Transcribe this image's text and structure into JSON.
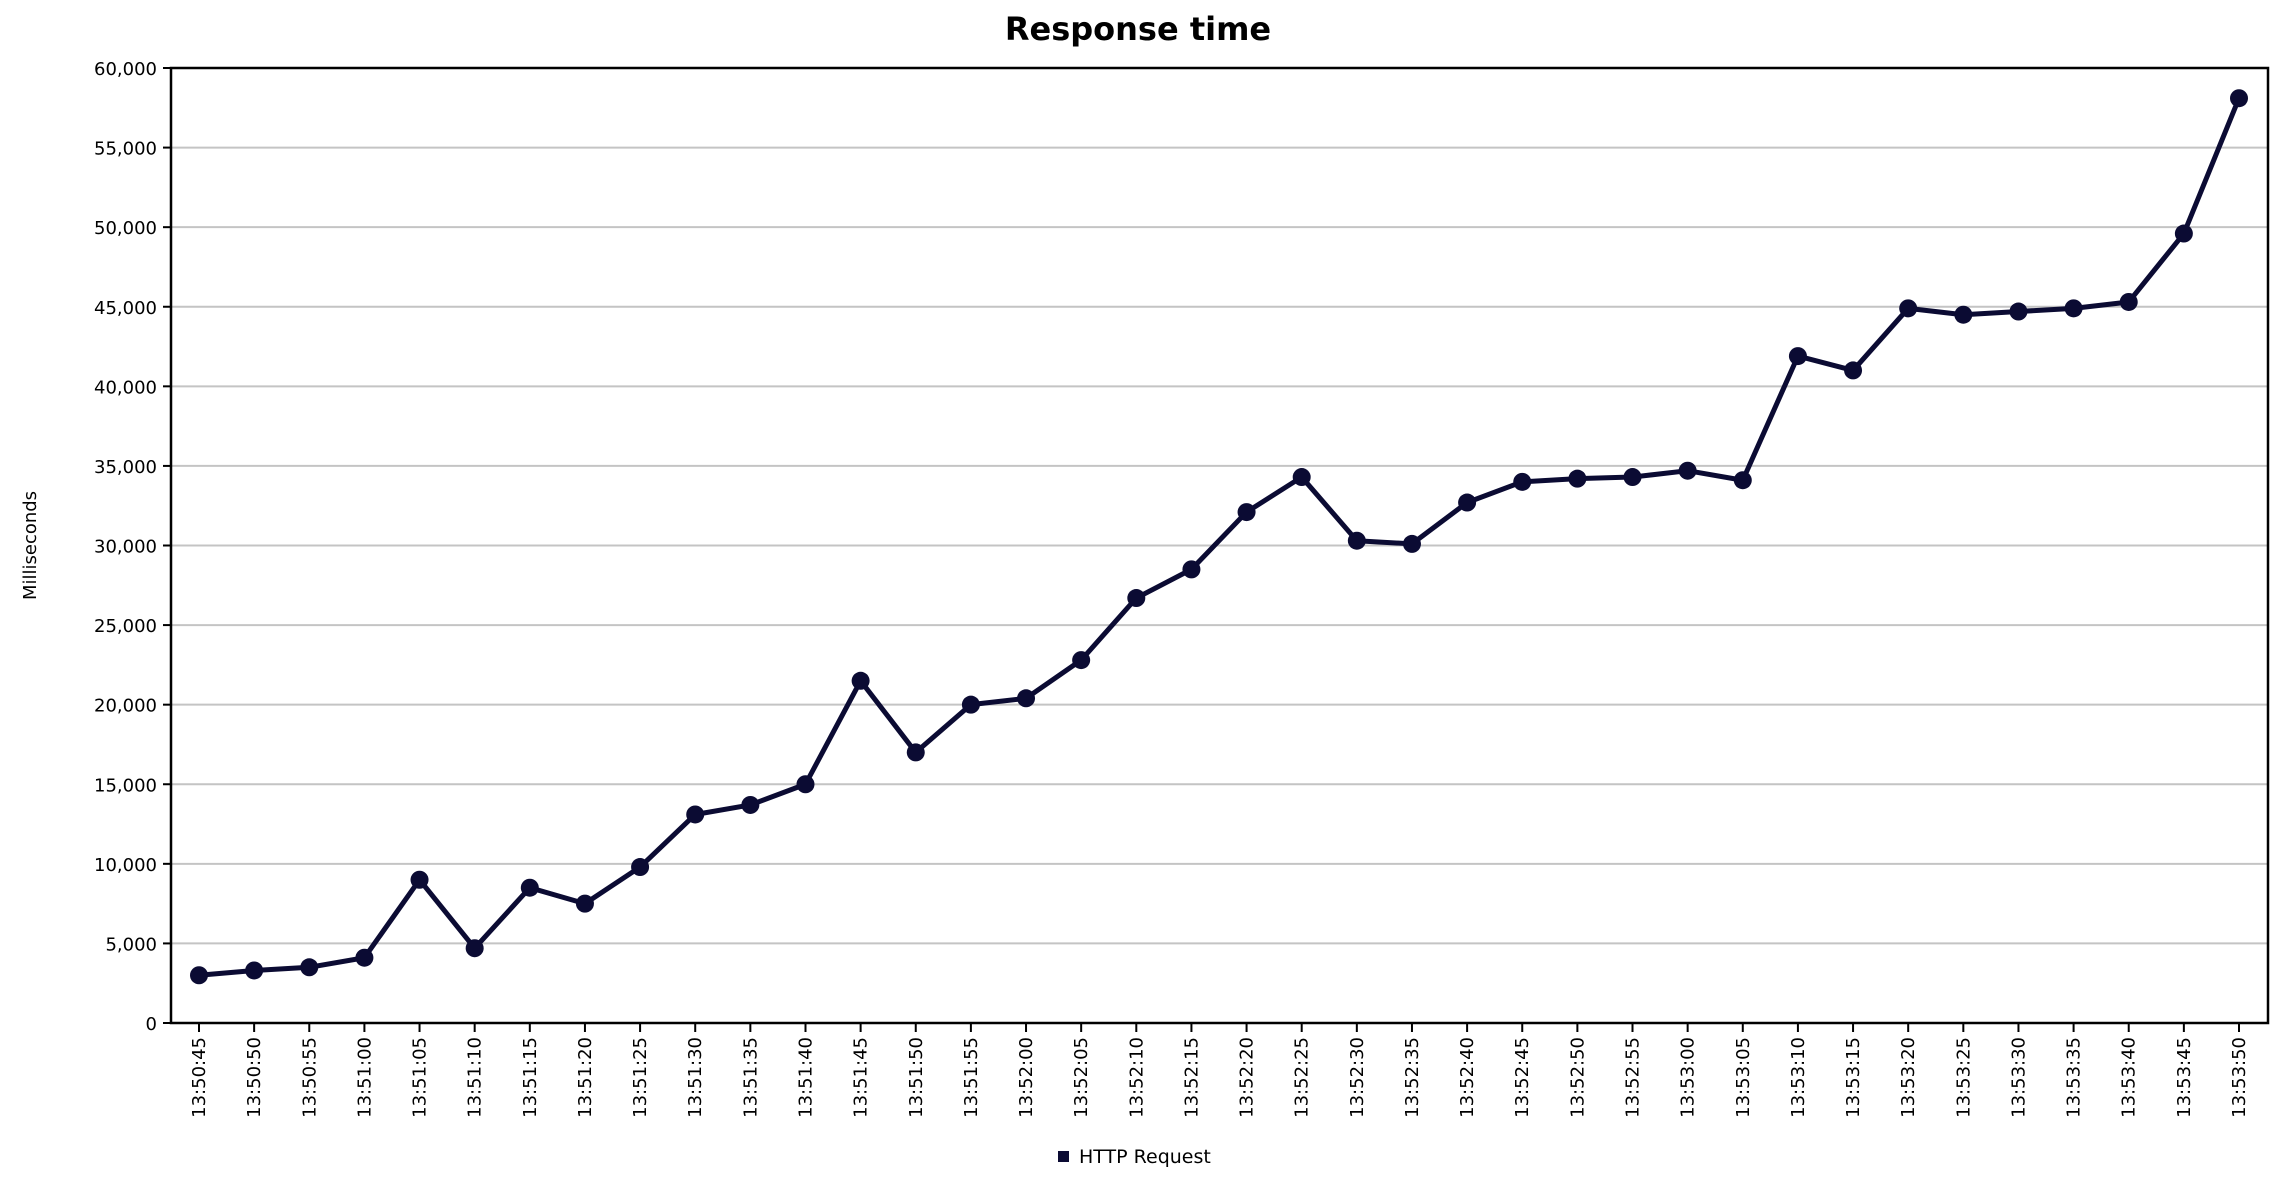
{
  "chart_data": {
    "type": "line",
    "title": "Response time",
    "xlabel": "",
    "ylabel": "Milliseconds",
    "ylim": [
      0,
      60000
    ],
    "yticks": [
      0,
      5000,
      10000,
      15000,
      20000,
      25000,
      30000,
      35000,
      40000,
      45000,
      50000,
      55000,
      60000
    ],
    "ytick_labels": [
      "0",
      "5,000",
      "10,000",
      "15,000",
      "20,000",
      "25,000",
      "30,000",
      "35,000",
      "40,000",
      "45,000",
      "50,000",
      "55,000",
      "60,000"
    ],
    "grid": "horizontal",
    "legend_position": "bottom-center",
    "categories": [
      "13:50:45",
      "13:50:50",
      "13:50:55",
      "13:51:00",
      "13:51:05",
      "13:51:10",
      "13:51:15",
      "13:51:20",
      "13:51:25",
      "13:51:30",
      "13:51:35",
      "13:51:40",
      "13:51:45",
      "13:51:50",
      "13:51:55",
      "13:52:00",
      "13:52:05",
      "13:52:10",
      "13:52:15",
      "13:52:20",
      "13:52:25",
      "13:52:30",
      "13:52:35",
      "13:52:40",
      "13:52:45",
      "13:52:50",
      "13:52:55",
      "13:53:00",
      "13:53:05",
      "13:53:10",
      "13:53:15",
      "13:53:20",
      "13:53:25",
      "13:53:30",
      "13:53:35",
      "13:53:40",
      "13:53:45",
      "13:53:50"
    ],
    "series": [
      {
        "name": "HTTP Request",
        "color": "#0b0b33",
        "values": [
          3000,
          3300,
          3500,
          4100,
          9000,
          4700,
          8500,
          7500,
          9800,
          13100,
          13700,
          15000,
          21500,
          17000,
          20000,
          20400,
          22800,
          26700,
          28500,
          32100,
          34300,
          30300,
          30100,
          32700,
          34000,
          34200,
          34300,
          34700,
          34100,
          41900,
          41000,
          44900,
          44500,
          44700,
          44900,
          45300,
          49600,
          58100
        ]
      }
    ]
  }
}
